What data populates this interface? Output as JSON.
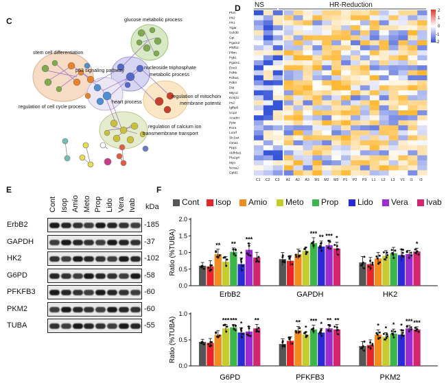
{
  "panel_labels": {
    "c": "C",
    "d": "D",
    "e": "E",
    "f": "F"
  },
  "network": {
    "terms": [
      "glucose metabolic process",
      "stem cell differentiation",
      "p53 signaling pathway",
      "nucleoside triphosphate metabolic process",
      "regulation of mitochondrial membrane potential",
      "heart process",
      "regulation of cell cycle process",
      "regulation of calcium ion transmembrane transport"
    ]
  },
  "heatmap": {
    "group_ns": "NS",
    "group_hr": "HR-Reduction",
    "genes": [
      "Pkm",
      "Hk2",
      "Hk1",
      "Tigar",
      "Gck3b",
      "Gpi",
      "Pgam2",
      "Pfkfb3",
      "Pfkm",
      "Pgk1",
      "Pgam1",
      "Eno3",
      "Pdhb",
      "Pdha1",
      "Pdk4",
      "Dld",
      "Mlycd",
      "Kcnj11",
      "Irs2",
      "Igfbp5",
      "Ucp2",
      "Acadm",
      "Ppia",
      "Rora",
      "Lonrf",
      "Slc2a4",
      "Oma1",
      "Ppp1",
      "Aldh5a1",
      "Pla2g4",
      "Myo",
      "Ncoa2",
      "Gpld1"
    ],
    "columns": [
      "C1",
      "C2",
      "C3",
      "A1",
      "A2",
      "A3",
      "M1",
      "M2",
      "M3",
      "P1",
      "P2",
      "P3",
      "L1",
      "L2",
      "L3",
      "V1",
      "I1",
      "I3"
    ],
    "scale_ticks": [
      "2",
      "1",
      "0",
      "-1",
      "-2"
    ]
  },
  "blot": {
    "lanes": [
      "Cont",
      "Isop",
      "Amio",
      "Meto",
      "Prop",
      "Lido",
      "Vera",
      "Ivab"
    ],
    "kda_label": "kDa",
    "rows": [
      {
        "protein": "ErbB2",
        "kda": "-185"
      },
      {
        "protein": "GAPDH",
        "kda": "-37"
      },
      {
        "protein": "HK2",
        "kda": "-102"
      },
      {
        "protein": "G6PD",
        "kda": "-58"
      },
      {
        "protein": "PFKFB3",
        "kda": "-60"
      },
      {
        "protein": "PKM2",
        "kda": "-60"
      },
      {
        "protein": "TUBA",
        "kda": "-55"
      }
    ]
  },
  "legend": {
    "items": [
      {
        "name": "Cont",
        "color": "#555555"
      },
      {
        "name": "Isop",
        "color": "#e8242a"
      },
      {
        "name": "Amio",
        "color": "#f28c1f"
      },
      {
        "name": "Meto",
        "color": "#c6cc2e"
      },
      {
        "name": "Prop",
        "color": "#3cb54a"
      },
      {
        "name": "Lido",
        "color": "#2a2ad6"
      },
      {
        "name": "Vera",
        "color": "#9c2bd1"
      },
      {
        "name": "Ivab",
        "color": "#d4266e"
      }
    ]
  },
  "chart_data": [
    {
      "type": "bar",
      "title": "",
      "ylabel": "Ratio (%TUBA)",
      "xlabel": "",
      "ylim": [
        0,
        2.0
      ],
      "yticks": [
        "0.0",
        "0.5",
        "1.0",
        "1.5",
        "2.0"
      ],
      "categories": [
        "ErbB2",
        "GAPDH",
        "HK2"
      ],
      "series": [
        {
          "name": "Cont",
          "values": [
            0.6,
            0.8,
            0.7
          ]
        },
        {
          "name": "Isop",
          "values": [
            0.58,
            0.75,
            0.65
          ]
        },
        {
          "name": "Amio",
          "values": [
            0.95,
            0.95,
            0.82
          ]
        },
        {
          "name": "Meto",
          "values": [
            0.72,
            1.05,
            0.9
          ]
        },
        {
          "name": "Prop",
          "values": [
            1.02,
            1.28,
            0.98
          ]
        },
        {
          "name": "Lido",
          "values": [
            0.65,
            1.18,
            0.92
          ]
        },
        {
          "name": "Vera",
          "values": [
            1.08,
            1.22,
            0.95
          ]
        },
        {
          "name": "Ivab",
          "values": [
            0.85,
            1.12,
            1.03
          ]
        }
      ],
      "annotations": [
        [
          "",
          "",
          "**",
          "",
          "**",
          "*",
          "***",
          ""
        ],
        [
          "",
          "",
          "",
          "",
          "***",
          "**",
          "***",
          "*"
        ],
        [
          "",
          "",
          "",
          "",
          "",
          "",
          "",
          "*"
        ]
      ]
    },
    {
      "type": "bar",
      "title": "",
      "ylabel": "Ratio (%TUBA)",
      "xlabel": "",
      "ylim": [
        0,
        1.0
      ],
      "yticks": [
        "0.0",
        "0.5",
        "1.0"
      ],
      "categories": [
        "G6PD",
        "PFKFB3",
        "PKM2"
      ],
      "series": [
        {
          "name": "Cont",
          "values": [
            0.46,
            0.42,
            0.38
          ]
        },
        {
          "name": "Isop",
          "values": [
            0.44,
            0.48,
            0.4
          ]
        },
        {
          "name": "Amio",
          "values": [
            0.6,
            0.68,
            0.6
          ]
        },
        {
          "name": "Meto",
          "values": [
            0.72,
            0.6,
            0.56
          ]
        },
        {
          "name": "Prop",
          "values": [
            0.74,
            0.7,
            0.62
          ]
        },
        {
          "name": "Lido",
          "values": [
            0.64,
            0.64,
            0.6
          ]
        },
        {
          "name": "Vera",
          "values": [
            0.66,
            0.72,
            0.72
          ]
        },
        {
          "name": "Ivab",
          "values": [
            0.72,
            0.7,
            0.7
          ]
        }
      ],
      "annotations": [
        [
          "",
          "",
          "",
          "***",
          "***",
          "*",
          "",
          "**"
        ],
        [
          "",
          "",
          "**",
          "*",
          "***",
          "*",
          "**",
          "**"
        ],
        [
          "",
          "",
          "*",
          "*",
          "*",
          "*",
          "***",
          "***"
        ]
      ]
    }
  ]
}
